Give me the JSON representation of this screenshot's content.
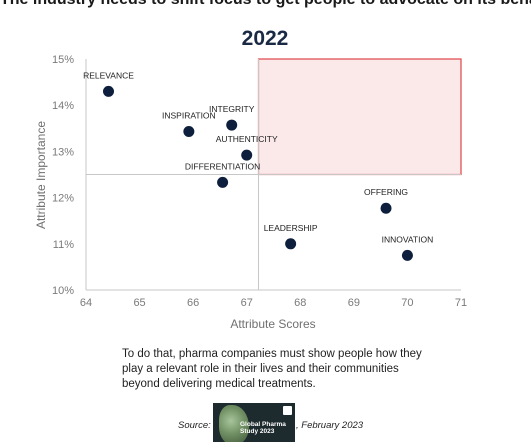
{
  "header": {
    "headline": "The industry needs to shift focus to get people to advocate on its behalf"
  },
  "chart_data": {
    "type": "scatter",
    "title": "2022",
    "xlabel": "Attribute Scores",
    "ylabel": "Attribute Importance",
    "xlim": [
      64,
      71
    ],
    "ylim": [
      10,
      15
    ],
    "x_ticks": [
      "64",
      "65",
      "66",
      "67",
      "68",
      "69",
      "70",
      "71"
    ],
    "y_ticks": [
      "10%",
      "11%",
      "12%",
      "13%",
      "14%",
      "15%"
    ],
    "points": [
      {
        "label": "RELEVANCE",
        "x": 64.42,
        "y": 14.3
      },
      {
        "label": "INSPIRATION",
        "x": 65.92,
        "y": 13.43
      },
      {
        "label": "INTEGRITY",
        "x": 66.72,
        "y": 13.57
      },
      {
        "label": "AUTHENTICITY",
        "x": 67.0,
        "y": 12.92
      },
      {
        "label": "DIFFERENTIATION",
        "x": 66.55,
        "y": 12.33
      },
      {
        "label": "OFFERING",
        "x": 69.6,
        "y": 11.77
      },
      {
        "label": "LEADERSHIP",
        "x": 67.82,
        "y": 11.0
      },
      {
        "label": "INNOVATION",
        "x": 70.0,
        "y": 10.75
      }
    ],
    "quadrant_lines": {
      "x": 67.22,
      "y": 12.5
    },
    "highlight_quadrant": {
      "x": [
        67.22,
        71
      ],
      "y": [
        12.5,
        15
      ]
    },
    "grid": false,
    "colors": {
      "point": "#0d1f3c",
      "highlight_fill": "#fbe9ea",
      "highlight_stroke": "#e0434a",
      "axis": "#c7c7c7",
      "tick_text": "#7a7a7a"
    }
  },
  "caption": "To do that, pharma companies must show people how they play a relevant role in their lives and their communities beyond delivering medical treatments.",
  "source": {
    "label": "Source:",
    "date": ", February 2023",
    "thumbnail_title": "Global Pharma Study 2023"
  }
}
